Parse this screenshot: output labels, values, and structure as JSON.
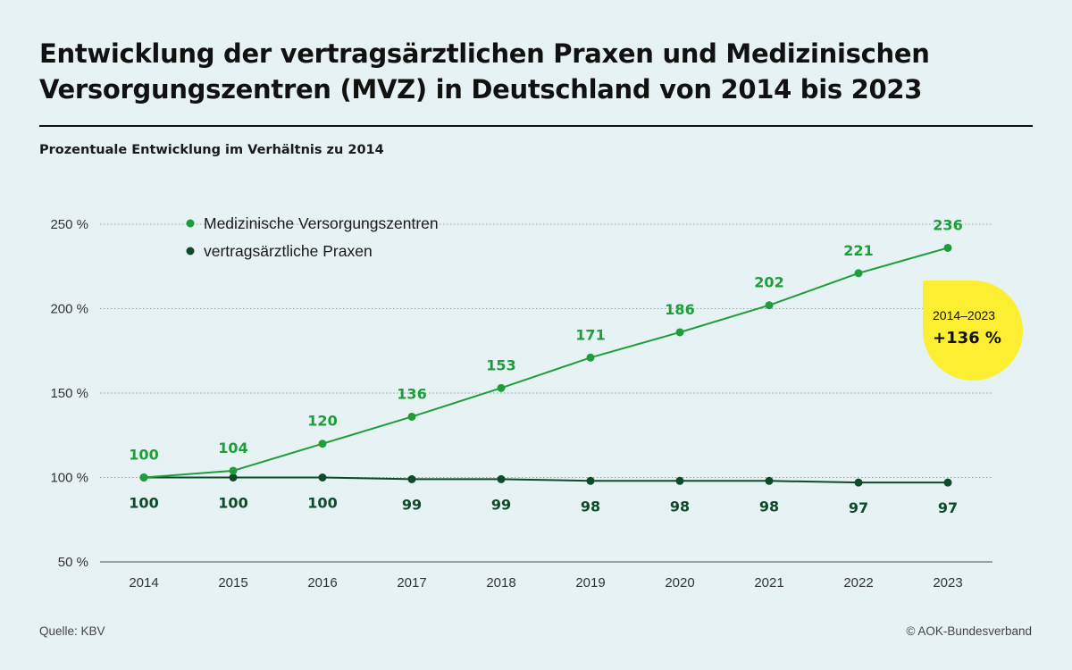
{
  "header": {
    "title_line1": "Entwicklung der vertragsärztlichen Praxen und Medizinischen",
    "title_line2": "Versorgungszentren (MVZ) in Deutschland von 2014 bis 2023",
    "subtitle": "Prozentuale Entwicklung im Verhältnis zu 2014"
  },
  "footer": {
    "source": "Quelle: KBV",
    "copyright": "© AOK-Bundesverband"
  },
  "colors": {
    "background": "#e6f2f3",
    "mvz": "#1e9e3a",
    "praxen": "#0f4a2a",
    "callout": "#fcee30",
    "grid": "#9aa3a5",
    "axis": "#9aa0a3"
  },
  "callout": {
    "period": "2014–2023",
    "change": "+136 %"
  },
  "chart_data": {
    "type": "line",
    "title": "Entwicklung der vertragsärztlichen Praxen und Medizinischen Versorgungszentren (MVZ) in Deutschland von 2014 bis 2023",
    "subtitle": "Prozentuale Entwicklung im Verhältnis zu 2014",
    "xlabel": "",
    "ylabel": "",
    "x": [
      "2014",
      "2015",
      "2016",
      "2017",
      "2018",
      "2019",
      "2020",
      "2021",
      "2022",
      "2023"
    ],
    "ylim": [
      50,
      250
    ],
    "yticks": [
      50,
      100,
      150,
      200,
      250
    ],
    "ytick_labels": [
      "50 %",
      "100 %",
      "150 %",
      "200 %",
      "250 %"
    ],
    "grid": true,
    "legend_position": "top-left",
    "series": [
      {
        "name": "Medizinische Versorgungszentren",
        "values": [
          100,
          104,
          120,
          136,
          153,
          171,
          186,
          202,
          221,
          236
        ],
        "labels_position": "above"
      },
      {
        "name": "vertragsärztliche Praxen",
        "values": [
          100,
          100,
          100,
          99,
          99,
          98,
          98,
          98,
          97,
          97
        ],
        "labels_position": "below"
      }
    ],
    "annotations": [
      {
        "text": "2014–2023 +136 %",
        "target_series": "Medizinische Versorgungszentren"
      }
    ]
  }
}
